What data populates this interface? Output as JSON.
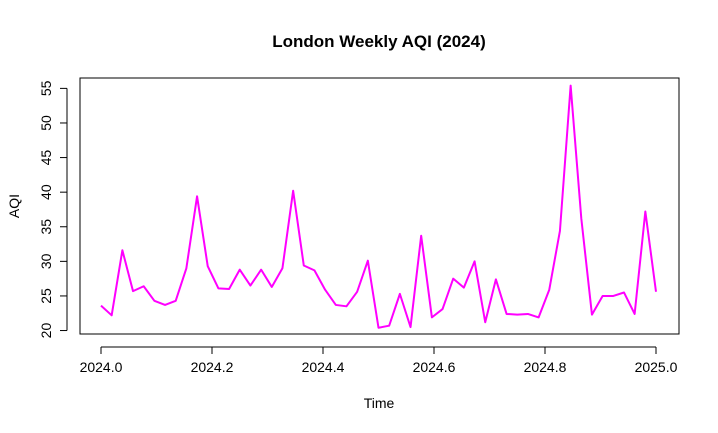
{
  "chart_data": {
    "type": "line",
    "title": "London Weekly AQI (2024)",
    "xlabel": "Time",
    "ylabel": "AQI",
    "xlim": [
      0,
      1
    ],
    "ylim": [
      19.5,
      56.5
    ],
    "x_ticks": [
      0,
      0.2,
      0.4,
      0.6,
      0.8,
      1.0
    ],
    "x_tick_labels": [
      "2024.0",
      "2024.2",
      "2024.4",
      "2024.6",
      "2024.8",
      "2025.0"
    ],
    "y_ticks": [
      20,
      25,
      30,
      35,
      40,
      45,
      50,
      55
    ],
    "y_tick_labels": [
      "20",
      "25",
      "30",
      "35",
      "40",
      "45",
      "50",
      "55"
    ],
    "grid": false,
    "series": [
      {
        "color": "#ff00ff",
        "x": [
          0.0,
          0.0192,
          0.0385,
          0.0577,
          0.0769,
          0.0962,
          0.1154,
          0.1346,
          0.1538,
          0.1731,
          0.1923,
          0.2115,
          0.2308,
          0.25,
          0.2692,
          0.2885,
          0.3077,
          0.3269,
          0.3462,
          0.3654,
          0.3846,
          0.4038,
          0.4231,
          0.4423,
          0.4615,
          0.4808,
          0.5,
          0.5192,
          0.5385,
          0.5577,
          0.5769,
          0.5962,
          0.6154,
          0.6346,
          0.6538,
          0.6731,
          0.6923,
          0.7115,
          0.7308,
          0.75,
          0.7692,
          0.7885,
          0.8077,
          0.8269,
          0.8462,
          0.8654,
          0.8846,
          0.9038,
          0.9231,
          0.9423,
          0.9615,
          0.9808,
          1.0
        ],
        "y": [
          23.6,
          22.2,
          31.6,
          25.7,
          26.4,
          24.3,
          23.7,
          24.3,
          29.0,
          39.4,
          29.3,
          26.1,
          26.0,
          28.8,
          26.5,
          28.8,
          26.3,
          29.0,
          40.2,
          29.4,
          28.7,
          25.9,
          23.7,
          23.5,
          25.6,
          30.1,
          20.4,
          20.7,
          25.3,
          20.5,
          33.7,
          21.9,
          23.1,
          27.5,
          26.2,
          30.0,
          21.2,
          27.4,
          22.4,
          22.3,
          22.4,
          21.9,
          25.9,
          34.4,
          55.4,
          36.2,
          22.3,
          25.0,
          25.0,
          25.5,
          22.4,
          37.2,
          25.6
        ]
      }
    ]
  }
}
